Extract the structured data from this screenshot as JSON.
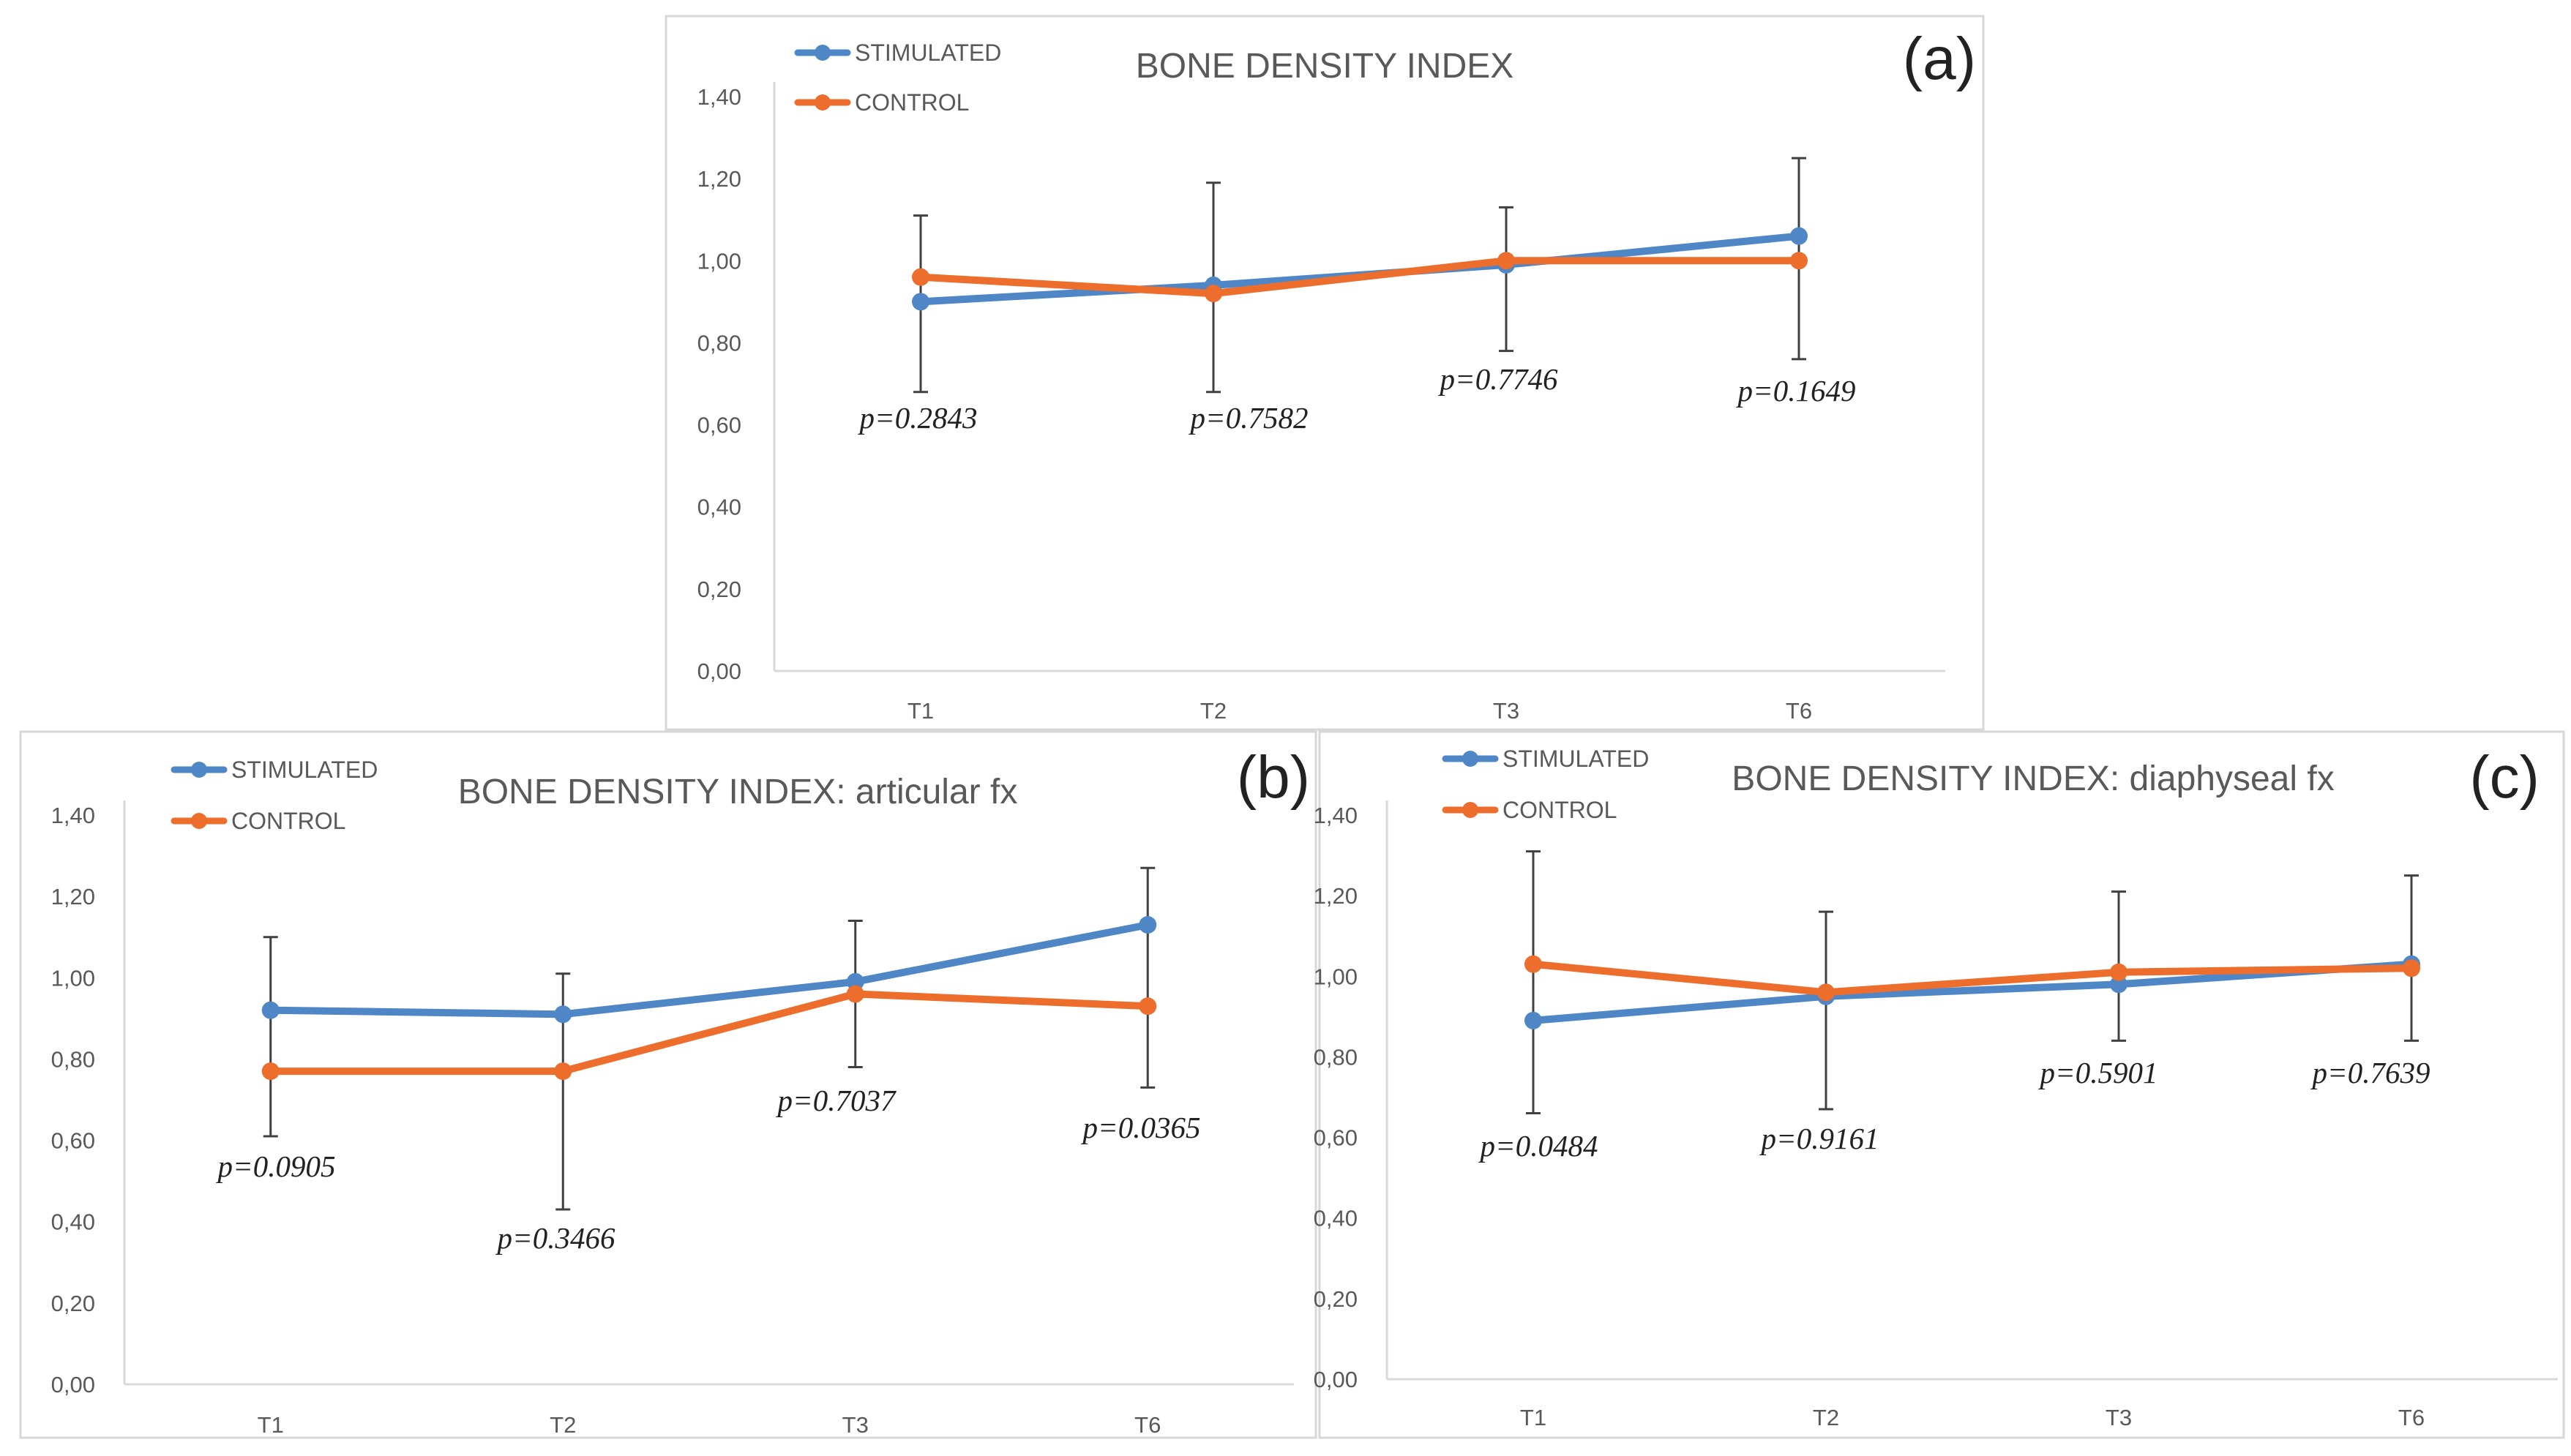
{
  "figure": {
    "colors": {
      "stimulated": "#4f86c6",
      "control": "#ed6d2c"
    }
  },
  "chart_data": [
    {
      "type": "line",
      "panel_label": "(a)",
      "title": "BONE DENSITY INDEX",
      "categories": [
        "T1",
        "T2",
        "T3",
        "T6"
      ],
      "ylim": [
        0,
        1.4
      ],
      "yticks": [
        "0,00",
        "0,20",
        "0,40",
        "0,60",
        "0,80",
        "1,00",
        "1,20",
        "1,40"
      ],
      "legend": [
        "STIMULATED",
        "CONTROL"
      ],
      "series": [
        {
          "name": "STIMULATED",
          "values": [
            0.9,
            0.94,
            0.99,
            1.06
          ],
          "error_low": [
            0.68,
            0.68,
            0.78,
            0.76
          ],
          "error_high": [
            1.11,
            1.19,
            1.13,
            1.25
          ]
        },
        {
          "name": "CONTROL",
          "values": [
            0.96,
            0.92,
            1.0,
            1.0
          ]
        }
      ],
      "p_values": [
        "p=0.2843",
        "p=0.7582",
        "p=0.7746",
        "p=0.1649"
      ]
    },
    {
      "type": "line",
      "panel_label": "(b)",
      "title": "BONE DENSITY INDEX: articular fx",
      "categories": [
        "T1",
        "T2",
        "T3",
        "T6"
      ],
      "ylim": [
        0,
        1.4
      ],
      "yticks": [
        "0,00",
        "0,20",
        "0,40",
        "0,60",
        "0,80",
        "1,00",
        "1,20",
        "1,40"
      ],
      "legend": [
        "STIMULATED",
        "CONTROL"
      ],
      "series": [
        {
          "name": "STIMULATED",
          "values": [
            0.92,
            0.91,
            0.99,
            1.13
          ],
          "error_low": [
            0.61,
            0.43,
            0.78,
            0.73
          ],
          "error_high": [
            1.1,
            1.01,
            1.14,
            1.27
          ]
        },
        {
          "name": "CONTROL",
          "values": [
            0.77,
            0.77,
            0.96,
            0.93
          ]
        }
      ],
      "p_values": [
        "p=0.0905",
        "p=0.3466",
        "p=0.7037",
        "p=0.0365"
      ]
    },
    {
      "type": "line",
      "panel_label": "(c)",
      "title": "BONE DENSITY INDEX: diaphyseal fx",
      "categories": [
        "T1",
        "T2",
        "T3",
        "T6"
      ],
      "ylim": [
        0,
        1.4
      ],
      "yticks": [
        "0,00",
        "0,20",
        "0,40",
        "0,60",
        "0,80",
        "1,00",
        "1,20",
        "1,40"
      ],
      "legend": [
        "STIMULATED",
        "CONTROL"
      ],
      "series": [
        {
          "name": "STIMULATED",
          "values": [
            0.89,
            0.95,
            0.98,
            1.03
          ],
          "error_low": [
            0.66,
            0.67,
            0.84,
            0.84
          ],
          "error_high": [
            1.31,
            1.16,
            1.21,
            1.25
          ]
        },
        {
          "name": "CONTROL",
          "values": [
            1.03,
            0.96,
            1.01,
            1.02
          ]
        }
      ],
      "p_values": [
        "p=0.0484",
        "p=0.9161",
        "p=0.5901",
        "p=0.7639"
      ]
    }
  ]
}
